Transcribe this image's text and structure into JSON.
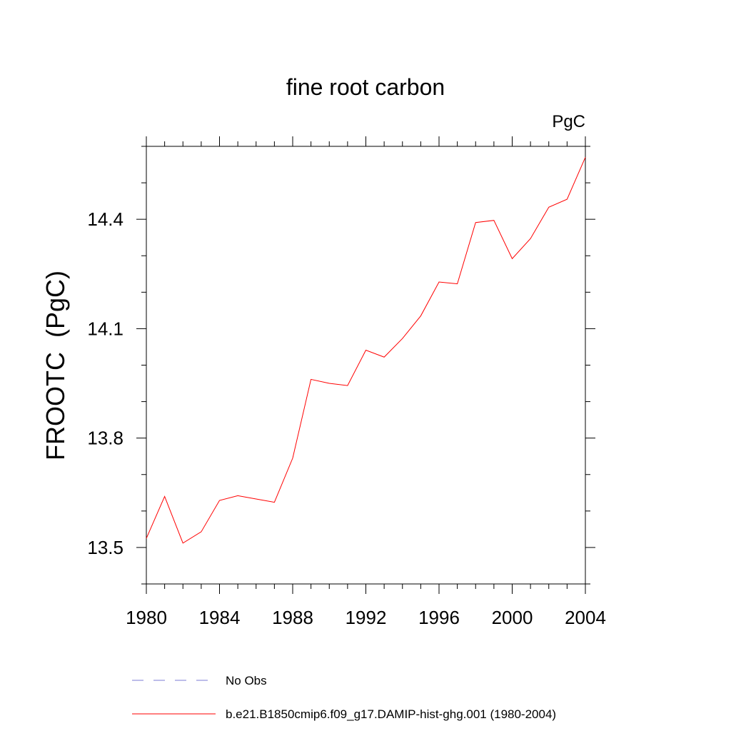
{
  "chart_data": {
    "type": "line",
    "title": "fine root carbon",
    "units_label": "PgC",
    "ylabel": "FROOTC  (PgC)",
    "xlabel": "",
    "xlim": [
      1980,
      2004
    ],
    "ylim": [
      13.4,
      14.6
    ],
    "xticks": [
      "1980",
      "1984",
      "1988",
      "1992",
      "1996",
      "2000",
      "2004"
    ],
    "yticks": [
      "13.5",
      "13.8",
      "14.1",
      "14.4"
    ],
    "grid": false,
    "legend_position": "bottom",
    "series": [
      {
        "name": "No Obs",
        "color": "#7b7bd6",
        "dash": "dashed",
        "x": [],
        "values": []
      },
      {
        "name": "b.e21.B1850cmip6.f09_g17.DAMIP-hist-ghg.001 (1980-2004)",
        "color": "#ff0000",
        "dash": "solid",
        "x": [
          1980,
          1981,
          1982,
          1983,
          1984,
          1985,
          1986,
          1987,
          1988,
          1989,
          1990,
          1991,
          1992,
          1993,
          1994,
          1995,
          1996,
          1997,
          1998,
          1999,
          2000,
          2001,
          2002,
          2003,
          2004
        ],
        "values": [
          13.525,
          13.64,
          13.512,
          13.543,
          13.629,
          13.642,
          13.633,
          13.624,
          13.745,
          13.961,
          13.95,
          13.944,
          14.041,
          14.022,
          14.073,
          14.135,
          14.228,
          14.223,
          14.391,
          14.397,
          14.292,
          14.347,
          14.433,
          14.455,
          14.57
        ]
      }
    ]
  }
}
